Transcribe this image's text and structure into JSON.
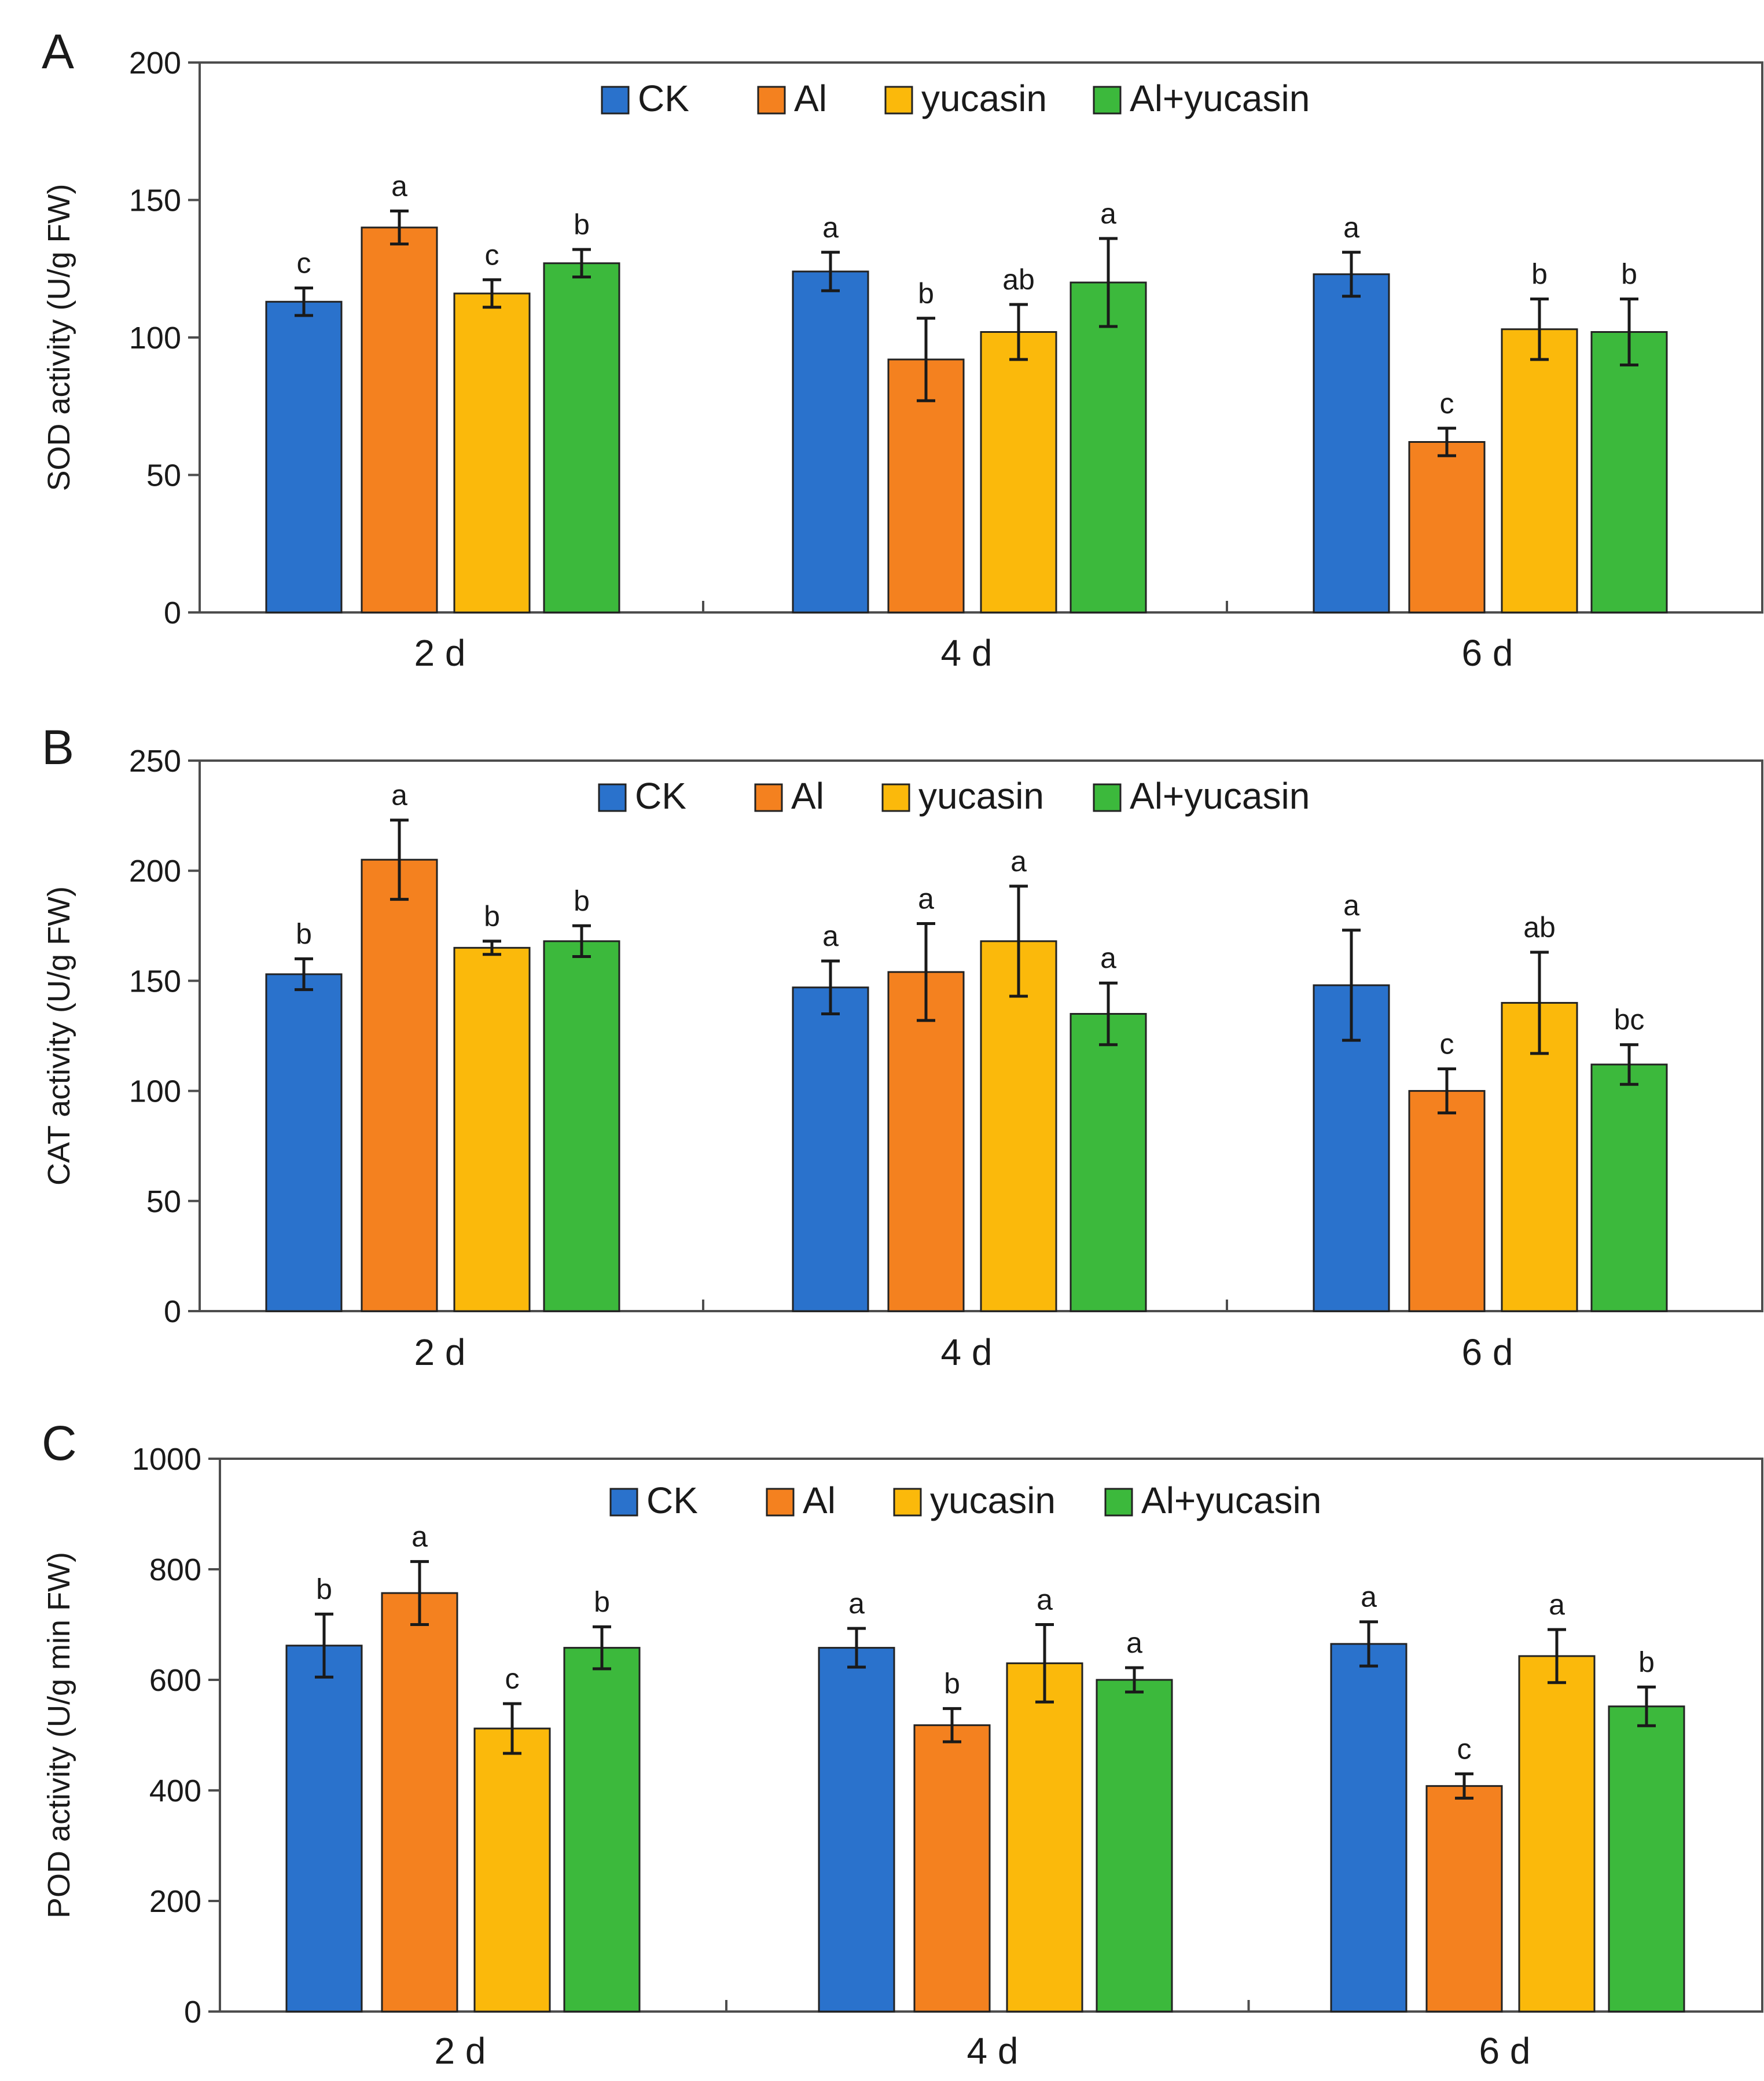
{
  "colors": {
    "CK": "#2a72cc",
    "Al": "#f4811f",
    "yucasin": "#fbb90b",
    "Al+yucasin": "#3cb93c",
    "axis": "#4d4d4d",
    "error_bar": "#1a1a1a"
  },
  "chart_data": [
    {
      "panel": "A",
      "type": "bar",
      "title": "",
      "xlabel": "",
      "ylabel": "SOD activity (U/g FW)",
      "ylim": [
        0,
        200
      ],
      "yticks": [
        0,
        50,
        100,
        150,
        200
      ],
      "categories": [
        "2 d",
        "4 d",
        "6 d"
      ],
      "legend": [
        "CK",
        "Al",
        "yucasin",
        "Al+yucasin"
      ],
      "legend_position": "top-center",
      "series": [
        {
          "name": "CK",
          "values": [
            113,
            124,
            123
          ],
          "errors": [
            5,
            7,
            8
          ],
          "labels": [
            "c",
            "a",
            "a"
          ]
        },
        {
          "name": "Al",
          "values": [
            140,
            92,
            62
          ],
          "errors": [
            6,
            15,
            5
          ],
          "labels": [
            "a",
            "b",
            "c"
          ]
        },
        {
          "name": "yucasin",
          "values": [
            116,
            102,
            103
          ],
          "errors": [
            5,
            10,
            11
          ],
          "labels": [
            "c",
            "ab",
            "b"
          ]
        },
        {
          "name": "Al+yucasin",
          "values": [
            127,
            120,
            102
          ],
          "errors": [
            5,
            16,
            12
          ],
          "labels": [
            "b",
            "a",
            "b"
          ]
        }
      ]
    },
    {
      "panel": "B",
      "type": "bar",
      "title": "",
      "xlabel": "",
      "ylabel": "CAT activity (U/g FW)",
      "ylim": [
        0,
        250
      ],
      "yticks": [
        0,
        50,
        100,
        150,
        200,
        250
      ],
      "categories": [
        "2 d",
        "4 d",
        "6 d"
      ],
      "legend": [
        "CK",
        "Al",
        "yucasin",
        "Al+yucasin"
      ],
      "legend_position": "top-center",
      "series": [
        {
          "name": "CK",
          "values": [
            153,
            147,
            148
          ],
          "errors": [
            7,
            12,
            25
          ],
          "labels": [
            "b",
            "a",
            "a"
          ]
        },
        {
          "name": "Al",
          "values": [
            205,
            154,
            100
          ],
          "errors": [
            18,
            22,
            10
          ],
          "labels": [
            "a",
            "a",
            "c"
          ]
        },
        {
          "name": "yucasin",
          "values": [
            165,
            168,
            140
          ],
          "errors": [
            3,
            25,
            23
          ],
          "labels": [
            "b",
            "a",
            "ab"
          ]
        },
        {
          "name": "Al+yucasin",
          "values": [
            168,
            135,
            112
          ],
          "errors": [
            7,
            14,
            9
          ],
          "labels": [
            "b",
            "a",
            "bc"
          ]
        }
      ]
    },
    {
      "panel": "C",
      "type": "bar",
      "title": "",
      "xlabel": "",
      "ylabel": "POD activity (U/g min FW)",
      "ylim": [
        0,
        1000
      ],
      "yticks": [
        0,
        200,
        400,
        600,
        800,
        1000
      ],
      "categories": [
        "2 d",
        "4 d",
        "6 d"
      ],
      "legend": [
        "CK",
        "Al",
        "yucasin",
        "Al+yucasin"
      ],
      "legend_position": "top-center",
      "series": [
        {
          "name": "CK",
          "values": [
            662,
            658,
            665
          ],
          "errors": [
            57,
            35,
            40
          ],
          "labels": [
            "b",
            "a",
            "a"
          ]
        },
        {
          "name": "Al",
          "values": [
            757,
            518,
            408
          ],
          "errors": [
            57,
            30,
            22
          ],
          "labels": [
            "a",
            "b",
            "c"
          ]
        },
        {
          "name": "yucasin",
          "values": [
            512,
            630,
            643
          ],
          "errors": [
            45,
            70,
            48
          ],
          "labels": [
            "c",
            "a",
            "a"
          ]
        },
        {
          "name": "Al+yucasin",
          "values": [
            658,
            600,
            552
          ],
          "errors": [
            38,
            22,
            35
          ],
          "labels": [
            "b",
            "a",
            "b"
          ]
        }
      ]
    }
  ]
}
